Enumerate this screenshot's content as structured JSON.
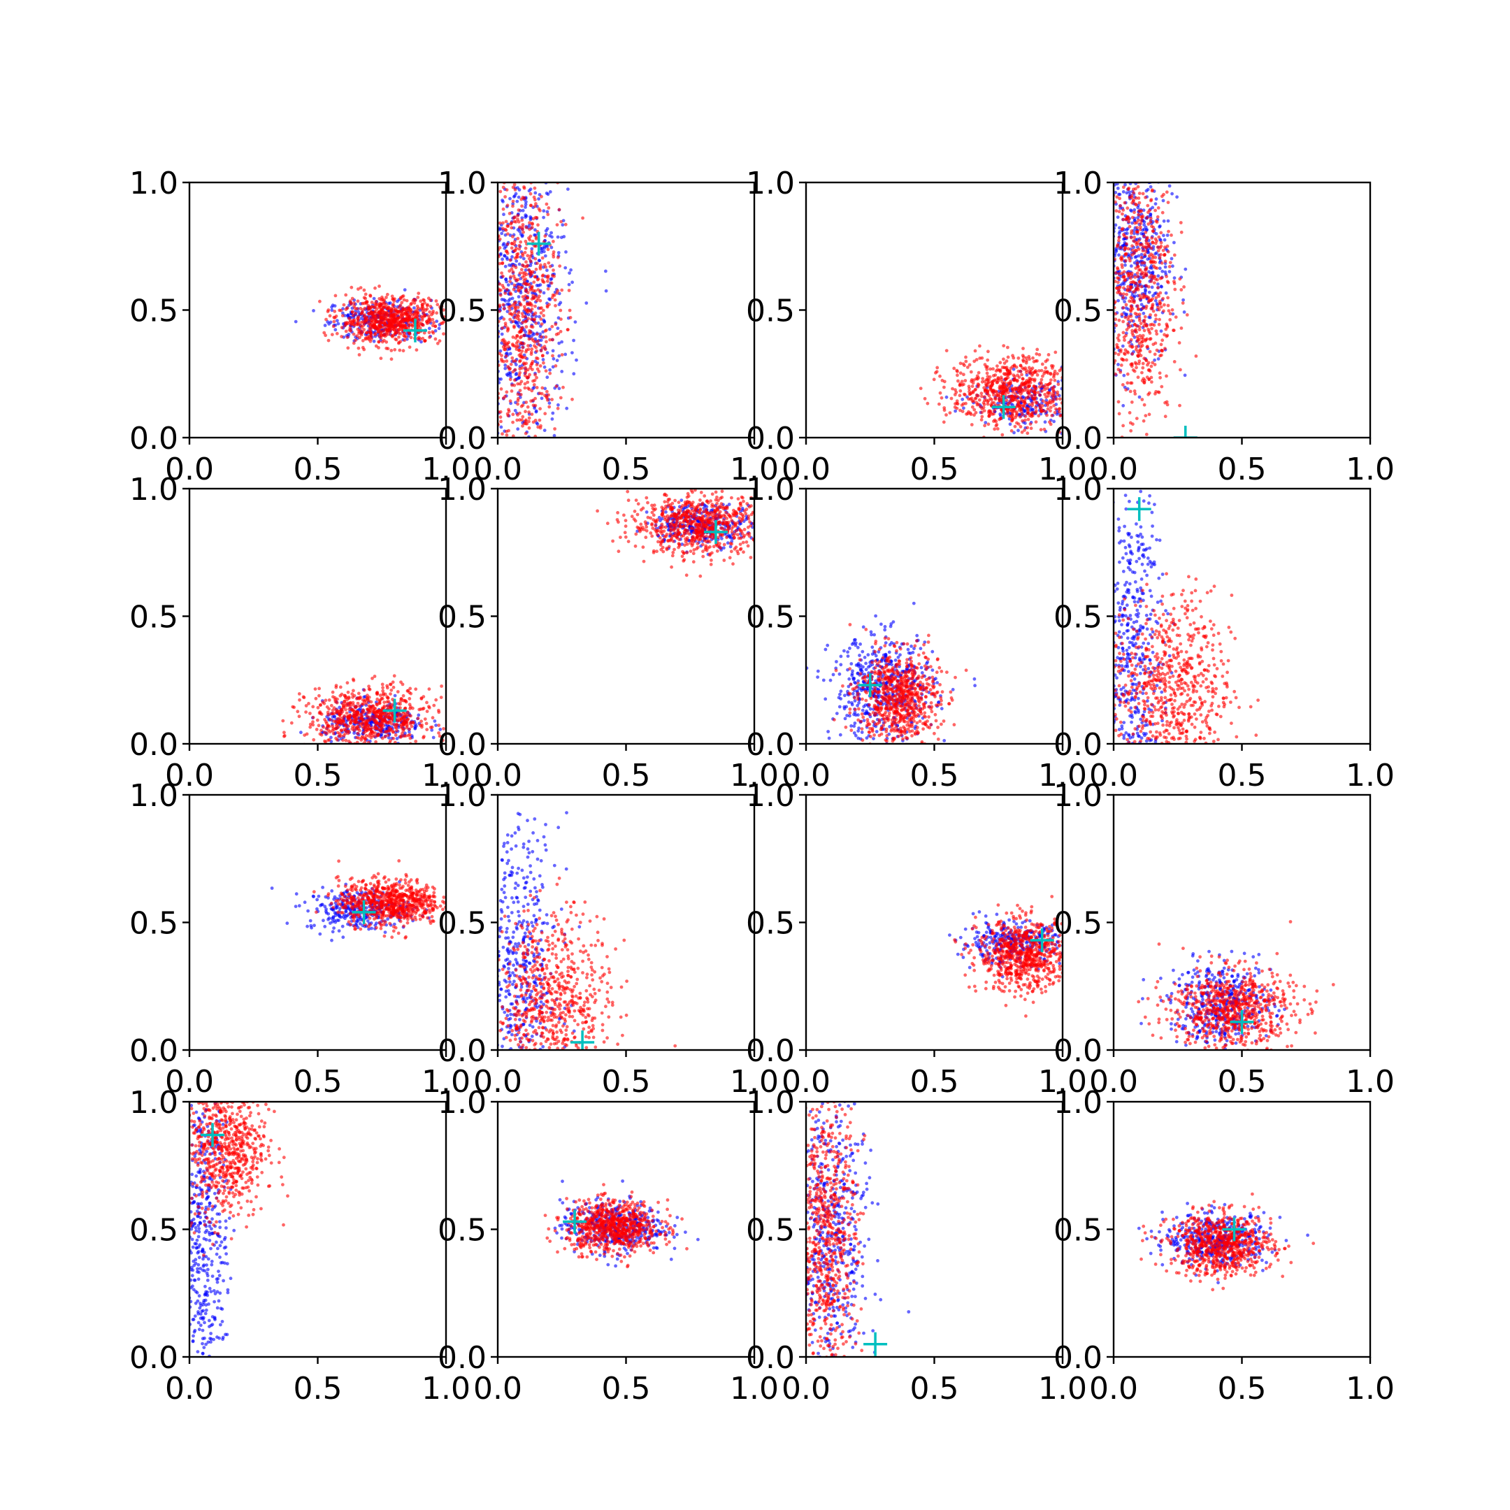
{
  "chart_data": {
    "type": "scatter",
    "grid_rows": 4,
    "grid_cols": 4,
    "xlim": [
      0,
      1
    ],
    "ylim": [
      0,
      1
    ],
    "x_ticks": [
      "0.0",
      "0.5",
      "1.0"
    ],
    "y_ticks": [
      "0.0",
      "0.5",
      "1.0"
    ],
    "grid": false,
    "legend": "none",
    "colors": {
      "blue_series": "#0000ff",
      "red_series": "#ff0000",
      "marker": "#00bfbf"
    },
    "panels": [
      {
        "row": 0,
        "col": 0,
        "marker": [
          0.88,
          0.42
        ],
        "blue": {
          "cx": 0.74,
          "cy": 0.46,
          "sx": 0.1,
          "sy": 0.04,
          "n": 260
        },
        "red": {
          "cx": 0.78,
          "cy": 0.46,
          "sx": 0.1,
          "sy": 0.045,
          "n": 700
        }
      },
      {
        "row": 0,
        "col": 1,
        "marker": [
          0.16,
          0.76
        ],
        "blue": {
          "cx": 0.1,
          "cy": 0.55,
          "sx": 0.09,
          "sy": 0.3,
          "n": 600
        },
        "red": {
          "cx": 0.1,
          "cy": 0.5,
          "sx": 0.07,
          "sy": 0.3,
          "n": 700
        }
      },
      {
        "row": 0,
        "col": 2,
        "marker": [
          0.77,
          0.12
        ],
        "blue": {
          "cx": 0.85,
          "cy": 0.14,
          "sx": 0.1,
          "sy": 0.05,
          "n": 200
        },
        "red": {
          "cx": 0.8,
          "cy": 0.18,
          "sx": 0.12,
          "sy": 0.07,
          "n": 700
        }
      },
      {
        "row": 0,
        "col": 3,
        "marker": [
          0.28,
          0.0
        ],
        "blue": {
          "cx": 0.08,
          "cy": 0.72,
          "sx": 0.07,
          "sy": 0.22,
          "n": 500
        },
        "red": {
          "cx": 0.09,
          "cy": 0.6,
          "sx": 0.07,
          "sy": 0.28,
          "n": 700
        }
      },
      {
        "row": 1,
        "col": 0,
        "marker": [
          0.8,
          0.13
        ],
        "blue": {
          "cx": 0.72,
          "cy": 0.08,
          "sx": 0.1,
          "sy": 0.04,
          "n": 300
        },
        "red": {
          "cx": 0.7,
          "cy": 0.1,
          "sx": 0.12,
          "sy": 0.06,
          "n": 700
        }
      },
      {
        "row": 1,
        "col": 1,
        "marker": [
          0.85,
          0.83
        ],
        "blue": {
          "cx": 0.8,
          "cy": 0.86,
          "sx": 0.1,
          "sy": 0.04,
          "n": 300
        },
        "red": {
          "cx": 0.78,
          "cy": 0.86,
          "sx": 0.13,
          "sy": 0.06,
          "n": 700
        }
      },
      {
        "row": 1,
        "col": 2,
        "marker": [
          0.25,
          0.23
        ],
        "blue": {
          "cx": 0.3,
          "cy": 0.22,
          "sx": 0.1,
          "sy": 0.1,
          "n": 500
        },
        "red": {
          "cx": 0.36,
          "cy": 0.18,
          "sx": 0.08,
          "sy": 0.09,
          "n": 700
        }
      },
      {
        "row": 1,
        "col": 3,
        "marker": [
          0.1,
          0.92
        ],
        "blue": {
          "cx": 0.07,
          "cy": 0.35,
          "sx": 0.06,
          "sy": 0.35,
          "n": 500
        },
        "red": {
          "cx": 0.22,
          "cy": 0.22,
          "sx": 0.12,
          "sy": 0.18,
          "n": 700
        }
      },
      {
        "row": 2,
        "col": 0,
        "marker": [
          0.68,
          0.54
        ],
        "blue": {
          "cx": 0.66,
          "cy": 0.55,
          "sx": 0.1,
          "sy": 0.04,
          "n": 300
        },
        "red": {
          "cx": 0.78,
          "cy": 0.58,
          "sx": 0.1,
          "sy": 0.045,
          "n": 700
        }
      },
      {
        "row": 2,
        "col": 1,
        "marker": [
          0.33,
          0.03
        ],
        "blue": {
          "cx": 0.08,
          "cy": 0.3,
          "sx": 0.08,
          "sy": 0.3,
          "n": 500
        },
        "red": {
          "cx": 0.22,
          "cy": 0.18,
          "sx": 0.11,
          "sy": 0.18,
          "n": 700
        }
      },
      {
        "row": 2,
        "col": 2,
        "marker": [
          0.92,
          0.43
        ],
        "blue": {
          "cx": 0.8,
          "cy": 0.42,
          "sx": 0.1,
          "sy": 0.04,
          "n": 300
        },
        "red": {
          "cx": 0.85,
          "cy": 0.37,
          "sx": 0.09,
          "sy": 0.07,
          "n": 700
        }
      },
      {
        "row": 2,
        "col": 3,
        "marker": [
          0.5,
          0.11
        ],
        "blue": {
          "cx": 0.42,
          "cy": 0.18,
          "sx": 0.1,
          "sy": 0.08,
          "n": 400
        },
        "red": {
          "cx": 0.46,
          "cy": 0.16,
          "sx": 0.12,
          "sy": 0.08,
          "n": 700
        }
      },
      {
        "row": 3,
        "col": 0,
        "marker": [
          0.09,
          0.87
        ],
        "blue": {
          "cx": 0.05,
          "cy": 0.5,
          "sx": 0.05,
          "sy": 0.32,
          "n": 500
        },
        "red": {
          "cx": 0.14,
          "cy": 0.82,
          "sx": 0.08,
          "sy": 0.14,
          "n": 700
        }
      },
      {
        "row": 3,
        "col": 1,
        "marker": [
          0.3,
          0.53
        ],
        "blue": {
          "cx": 0.45,
          "cy": 0.51,
          "sx": 0.1,
          "sy": 0.05,
          "n": 400
        },
        "red": {
          "cx": 0.45,
          "cy": 0.51,
          "sx": 0.09,
          "sy": 0.05,
          "n": 700
        }
      },
      {
        "row": 3,
        "col": 2,
        "marker": [
          0.27,
          0.05
        ],
        "blue": {
          "cx": 0.1,
          "cy": 0.45,
          "sx": 0.07,
          "sy": 0.3,
          "n": 500
        },
        "red": {
          "cx": 0.08,
          "cy": 0.45,
          "sx": 0.06,
          "sy": 0.3,
          "n": 700
        }
      },
      {
        "row": 3,
        "col": 3,
        "marker": [
          0.47,
          0.5
        ],
        "blue": {
          "cx": 0.4,
          "cy": 0.46,
          "sx": 0.1,
          "sy": 0.05,
          "n": 400
        },
        "red": {
          "cx": 0.42,
          "cy": 0.44,
          "sx": 0.1,
          "sy": 0.06,
          "n": 700
        }
      }
    ]
  }
}
